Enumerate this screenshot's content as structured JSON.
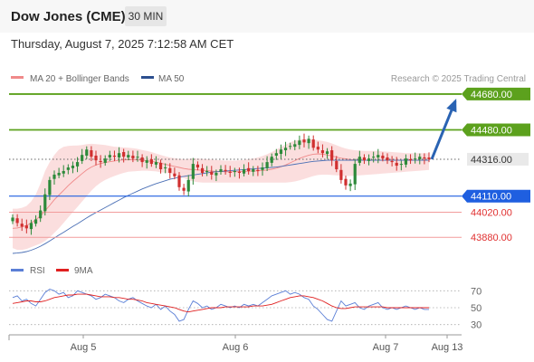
{
  "header": {
    "title": "Dow Jones (CME)",
    "timeframe": "30 MIN"
  },
  "datetime": "Thursday, August 7, 2025 7:12:58 AM CET",
  "legend": {
    "ma20_label": "MA 20 + Bollinger Bands",
    "ma50_label": "MA 50",
    "credit": "Research © 2025 Trading Central",
    "rsi_label": "RSI",
    "ma9_label": "9MA"
  },
  "colors": {
    "target": "#5ca11d",
    "support": "#1f5fe0",
    "support2": "#e05a5a",
    "last": "#333333",
    "candle_up": "#2d8a3a",
    "candle_down": "#d02f2f",
    "band": "#f7c3c3",
    "ma20": "#f08a8a",
    "ma50": "#4a6fb5",
    "rsi": "#5b7fd6",
    "ma9": "#e02020",
    "arrow": "#2a63b3"
  },
  "chart_data": [
    {
      "type": "candlestick",
      "x_ticks": [
        "Aug 5",
        "Aug 6",
        "Aug 7",
        "Aug 13"
      ],
      "levels": [
        {
          "name": "target",
          "value": 44680.0,
          "label": "44680.00",
          "style": "solid-tag"
        },
        {
          "name": "target",
          "value": 44480.0,
          "label": "44480.00",
          "style": "solid-tag"
        },
        {
          "name": "last",
          "value": 44316.0,
          "label": "44316.00",
          "style": "dotted-tag"
        },
        {
          "name": "support",
          "value": 44110.0,
          "label": "44110.00",
          "style": "solid-tag"
        },
        {
          "name": "support2",
          "value": 44020.0,
          "label": "44020.00",
          "style": "text"
        },
        {
          "name": "support2",
          "value": 43880.0,
          "label": "43880.00",
          "style": "text"
        }
      ],
      "ylim": [
        43780,
        44720
      ],
      "closes": [
        43990,
        43960,
        43940,
        43930,
        43960,
        43980,
        44030,
        44120,
        44200,
        44230,
        44240,
        44250,
        44270,
        44280,
        44300,
        44340,
        44370,
        44330,
        44310,
        44300,
        44320,
        44340,
        44330,
        44350,
        44330,
        44340,
        44320,
        44330,
        44300,
        44310,
        44290,
        44300,
        44260,
        44270,
        44240,
        44220,
        44160,
        44140,
        44200,
        44290,
        44270,
        44240,
        44250,
        44230,
        44240,
        44260,
        44250,
        44240,
        44250,
        44240,
        44260,
        44250,
        44260,
        44250,
        44270,
        44300,
        44330,
        44350,
        44370,
        44380,
        44390,
        44400,
        44420,
        44410,
        44430,
        44380,
        44370,
        44350,
        44360,
        44310,
        44260,
        44200,
        44170,
        44180,
        44290,
        44330,
        44310,
        44320,
        44330,
        44340,
        44320,
        44310,
        44300,
        44280,
        44290,
        44320,
        44310,
        44320,
        44330,
        44320,
        44316
      ],
      "ma20": [
        43930,
        43932,
        43938,
        43946,
        43960,
        43978,
        44000,
        44028,
        44058,
        44090,
        44116,
        44142,
        44168,
        44192,
        44214,
        44236,
        44256,
        44272,
        44284,
        44292,
        44298,
        44302,
        44306,
        44310,
        44312,
        44313,
        44313,
        44312,
        44310,
        44307,
        44304,
        44300,
        44294,
        44288,
        44282,
        44276,
        44270,
        44264,
        44260,
        44258,
        44256,
        44254,
        44252,
        44250,
        44248,
        44247,
        44246,
        44246,
        44246,
        44247,
        44248,
        44249,
        44250,
        44251,
        44253,
        44256,
        44260,
        44266,
        44274,
        44284,
        44296,
        44308,
        44320,
        44330,
        44338,
        44344,
        44346,
        44344,
        44340,
        44334,
        44328,
        44322,
        44318,
        44314,
        44312,
        44311,
        44310,
        44310,
        44310,
        44310,
        44310,
        44310,
        44310,
        44310,
        44310,
        44310,
        44310,
        44310,
        44310,
        44310,
        44310
      ],
      "bb_upper": [
        44040,
        44040,
        44045,
        44055,
        44080,
        44120,
        44180,
        44250,
        44300,
        44340,
        44370,
        44385,
        44390,
        44392,
        44393,
        44395,
        44400,
        44402,
        44400,
        44398,
        44395,
        44390,
        44386,
        44384,
        44382,
        44380,
        44378,
        44374,
        44368,
        44362,
        44356,
        44348,
        44340,
        44332,
        44326,
        44322,
        44318,
        44316,
        44318,
        44320,
        44320,
        44318,
        44316,
        44314,
        44312,
        44310,
        44308,
        44308,
        44308,
        44310,
        44312,
        44316,
        44320,
        44326,
        44334,
        44344,
        44356,
        44370,
        44384,
        44398,
        44410,
        44420,
        44426,
        44428,
        44428,
        44426,
        44422,
        44418,
        44412,
        44404,
        44394,
        44384,
        44376,
        44370,
        44366,
        44364,
        44362,
        44362,
        44362,
        44362,
        44360,
        44358,
        44356,
        44354,
        44352,
        44350,
        44350,
        44350,
        44350,
        44350,
        44350
      ],
      "bb_lower": [
        43820,
        43810,
        43810,
        43815,
        43825,
        43835,
        43845,
        43860,
        43880,
        43905,
        43930,
        43960,
        43990,
        44020,
        44050,
        44080,
        44110,
        44140,
        44165,
        44185,
        44200,
        44212,
        44222,
        44232,
        44240,
        44246,
        44248,
        44250,
        44252,
        44252,
        44250,
        44248,
        44244,
        44240,
        44236,
        44230,
        44222,
        44212,
        44200,
        44192,
        44188,
        44186,
        44186,
        44186,
        44186,
        44186,
        44186,
        44186,
        44186,
        44186,
        44186,
        44186,
        44186,
        44186,
        44186,
        44186,
        44186,
        44186,
        44186,
        44186,
        44188,
        44192,
        44198,
        44206,
        44214,
        44222,
        44228,
        44230,
        44230,
        44228,
        44226,
        44224,
        44222,
        44222,
        44224,
        44226,
        44228,
        44230,
        44232,
        44234,
        44236,
        44238,
        44240,
        44242,
        44244,
        44246,
        44248,
        44250,
        44252,
        44254,
        44256
      ],
      "ma50": [
        43790,
        43792,
        43795,
        43800,
        43808,
        43818,
        43830,
        43844,
        43860,
        43876,
        43892,
        43908,
        43924,
        43940,
        43956,
        43972,
        43988,
        44004,
        44018,
        44032,
        44046,
        44060,
        44074,
        44088,
        44102,
        44114,
        44126,
        44138,
        44150,
        44160,
        44170,
        44180,
        44188,
        44196,
        44204,
        44210,
        44216,
        44220,
        44224,
        44228,
        44232,
        44236,
        44240,
        44244,
        44246,
        44248,
        44250,
        44252,
        44254,
        44256,
        44258,
        44260,
        44262,
        44264,
        44266,
        44268,
        44270,
        44272,
        44276,
        44280,
        44284,
        44288,
        44292,
        44296,
        44300,
        44304,
        44306,
        44308,
        44310,
        44310,
        44310,
        44310,
        44310,
        44310,
        44310,
        44310,
        44310,
        44310,
        44310,
        44310,
        44310,
        44310,
        44310,
        44310,
        44310,
        44310,
        44310,
        44310,
        44310,
        44310,
        44310
      ],
      "projection": [
        {
          "value": 44316.0
        },
        {
          "value": 44640.0
        }
      ]
    },
    {
      "type": "line",
      "series_names": [
        "RSI",
        "9MA"
      ],
      "y_ticks": [
        70,
        50,
        30
      ],
      "ylim": [
        20,
        80
      ],
      "rsi": [
        62,
        64,
        58,
        60,
        55,
        52,
        60,
        68,
        72,
        70,
        66,
        68,
        62,
        64,
        70,
        68,
        66,
        64,
        60,
        62,
        66,
        64,
        62,
        58,
        56,
        60,
        62,
        58,
        55,
        52,
        50,
        54,
        48,
        52,
        46,
        42,
        34,
        36,
        48,
        58,
        55,
        50,
        52,
        48,
        50,
        54,
        52,
        50,
        52,
        50,
        54,
        52,
        54,
        52,
        56,
        60,
        64,
        66,
        68,
        70,
        66,
        68,
        66,
        62,
        60,
        52,
        48,
        42,
        36,
        34,
        46,
        58,
        52,
        54,
        56,
        50,
        48,
        52,
        54,
        56,
        50,
        48,
        50,
        48,
        50,
        52,
        50,
        48,
        50,
        48,
        48
      ],
      "ma9": [
        55,
        56,
        57,
        58,
        58,
        57,
        57,
        58,
        60,
        62,
        63,
        64,
        65,
        65,
        66,
        66,
        66,
        65,
        64,
        63,
        63,
        63,
        62,
        62,
        61,
        60,
        60,
        59,
        58,
        56,
        55,
        54,
        53,
        52,
        51,
        50,
        48,
        46,
        45,
        46,
        47,
        48,
        49,
        50,
        50,
        50,
        51,
        51,
        51,
        51,
        51,
        51,
        52,
        52,
        52,
        53,
        54,
        56,
        58,
        60,
        62,
        63,
        64,
        64,
        63,
        62,
        60,
        58,
        55,
        52,
        50,
        49,
        49,
        50,
        51,
        51,
        51,
        51,
        51,
        51,
        51,
        50,
        50,
        50,
        50,
        50,
        50,
        50,
        50,
        50,
        50
      ]
    }
  ]
}
